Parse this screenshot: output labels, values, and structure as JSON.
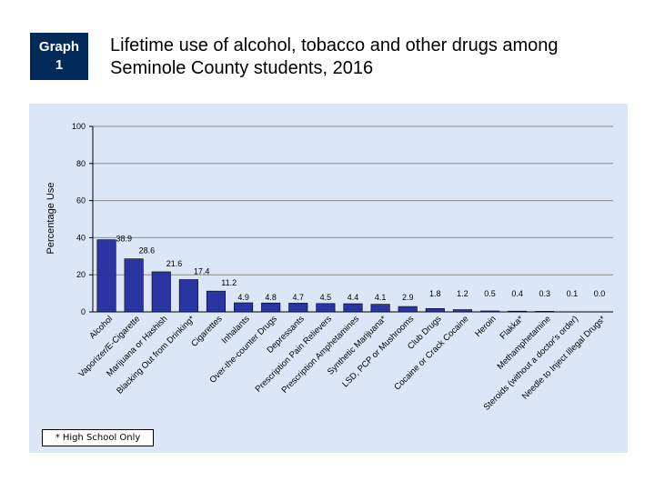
{
  "header": {
    "badge_line1": "Graph",
    "badge_line2": "1",
    "title_line1": "Lifetime use of alcohol, tobacco and other drugs among",
    "title_line2": "Seminole County students, 2016"
  },
  "footnote": "* High School Only",
  "colors": {
    "bar_fill": "#2a35a3",
    "panel_bg": "#dbe6f6",
    "badge_bg": "#002a5a"
  },
  "chart_data": {
    "type": "bar",
    "title": "",
    "xlabel": "",
    "ylabel": "Percentage Use",
    "ylim": [
      0,
      100
    ],
    "yticks": [
      0,
      20,
      40,
      60,
      80,
      100
    ],
    "grid": true,
    "categories": [
      "Alcohol",
      "Vaporizer/E-Cigarette",
      "Marijuana or Hashish",
      "Blacking Out from Drinking*",
      "Cigarettes",
      "Inhalants",
      "Over-the-counter Drugs",
      "Depressants",
      "Prescription Pain Relievers",
      "Prescription Amphetamines",
      "Synthetic Marijuana*",
      "LSD, PCP or Mushrooms",
      "Club Drugs",
      "Cocaine or Crack Cocaine",
      "Heroin",
      "Flakka*",
      "Methamphetamine",
      "Steroids (without a doctor's order)",
      "Needle to Inject Illegal Drugs*"
    ],
    "values": [
      38.9,
      28.6,
      21.6,
      17.4,
      11.2,
      4.9,
      4.8,
      4.7,
      4.5,
      4.4,
      4.1,
      2.9,
      1.8,
      1.2,
      0.5,
      0.4,
      0.3,
      0.1,
      0.0
    ],
    "value_labels": [
      "38.9",
      "28.6",
      "21.6",
      "17.4",
      "11.2",
      "4.9",
      "4.8",
      "4.7",
      "4.5",
      "4.4",
      "4.1",
      "2.9",
      "1.8",
      "1.2",
      "0.5",
      "0.4",
      "0.3",
      "0.1",
      "0.0"
    ]
  }
}
